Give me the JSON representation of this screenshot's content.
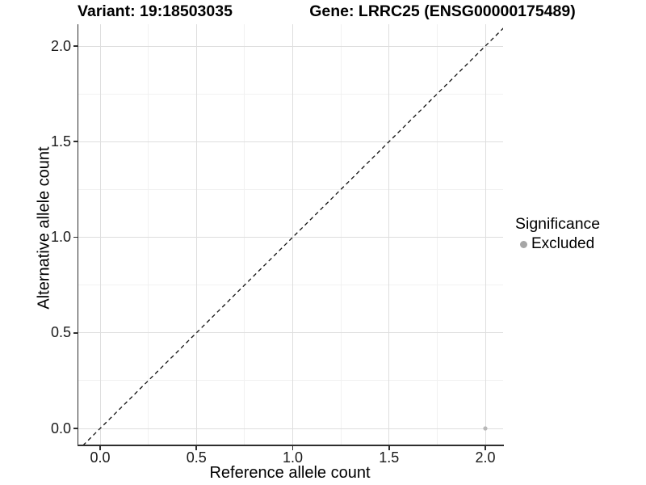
{
  "chart_data": {
    "type": "scatter",
    "title_left": "Variant: 19:18503035",
    "title_right": "Gene: LRRC25 (ENSG00000175489)",
    "xlabel": "Reference allele count",
    "ylabel": "Alternative allele count",
    "xlim": [
      -0.11,
      2.09
    ],
    "ylim": [
      -0.11,
      2.09
    ],
    "x_ticks": {
      "values": [
        0,
        0.5,
        1,
        1.5,
        2
      ],
      "labels": [
        "0.0",
        "0.5",
        "1.0",
        "1.5",
        "2.0"
      ]
    },
    "y_ticks": {
      "values": [
        0,
        0.5,
        1,
        1.5,
        2
      ],
      "labels": [
        "0.0",
        "0.5",
        "1.0",
        "1.5",
        "2.0"
      ]
    },
    "grid": {
      "major": true,
      "minor": true,
      "major_color": "#dedede",
      "minor_color": "#f1f1f1"
    },
    "reference_line": {
      "kind": "identity y=x",
      "style": "dashed",
      "color": "#111111"
    },
    "series": [
      {
        "name": "Excluded",
        "color": "#b8b8b8",
        "points": [
          {
            "x": 2.0,
            "y": 0.0
          }
        ]
      }
    ],
    "legend": {
      "title": "Significance",
      "position": "right",
      "items": [
        {
          "label": "Excluded",
          "color": "#a6a6a6"
        }
      ]
    }
  }
}
